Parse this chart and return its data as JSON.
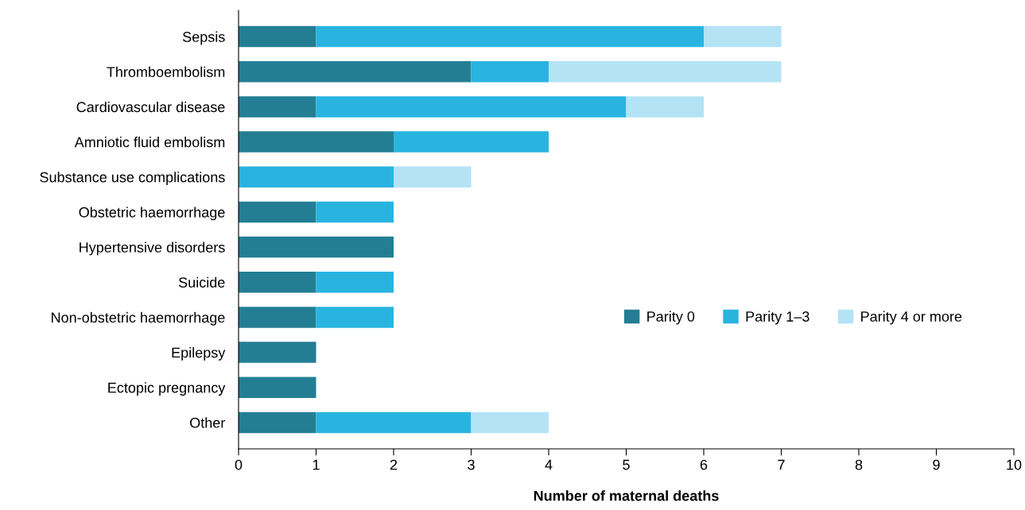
{
  "chart_data": {
    "type": "bar",
    "orientation": "horizontal",
    "stacked": true,
    "xlabel": "Number of maternal deaths",
    "categories": [
      "Sepsis",
      "Thromboembolism",
      "Cardiovascular disease",
      "Amniotic fluid embolism",
      "Substance use complications",
      "Obstetric haemorrhage",
      "Hypertensive disorders",
      "Suicide",
      "Non-obstetric haemorrhage",
      "Epilepsy",
      "Ectopic pregnancy",
      "Other"
    ],
    "series": [
      {
        "name": "Parity 0",
        "color": "#237e94",
        "values": [
          1,
          3,
          1,
          2,
          0,
          1,
          2,
          1,
          1,
          1,
          1,
          1
        ]
      },
      {
        "name": "Parity 1–3",
        "color": "#29b4e0",
        "values": [
          5,
          1,
          4,
          2,
          2,
          1,
          0,
          1,
          1,
          0,
          0,
          2
        ]
      },
      {
        "name": "Parity 4 or more",
        "color": "#b3e3f5",
        "values": [
          1,
          3,
          1,
          0,
          1,
          0,
          0,
          0,
          0,
          0,
          0,
          1
        ]
      }
    ],
    "xlim": [
      0,
      10
    ],
    "xticks": [
      0,
      1,
      2,
      3,
      4,
      5,
      6,
      7,
      8,
      9,
      10
    ],
    "grid": false,
    "legend": "right"
  }
}
